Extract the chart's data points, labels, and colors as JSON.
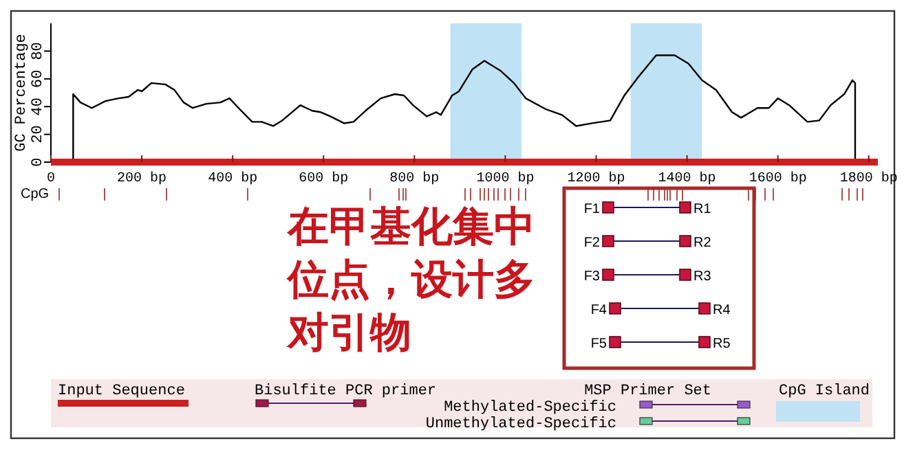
{
  "chart_data": [
    {
      "type": "line",
      "ylabel": "GC Percentage",
      "xlim": [
        0,
        1820
      ],
      "ylim": [
        0,
        100
      ],
      "xticks": [
        0,
        {
          "value": 200,
          "label": "200 bp"
        },
        {
          "value": 400,
          "label": "400 bp"
        },
        {
          "value": 600,
          "label": "600 bp"
        },
        {
          "value": 800,
          "label": "800 bp"
        },
        {
          "value": 1000,
          "label": "1000 bp"
        },
        {
          "value": 1200,
          "label": "1200 bp"
        },
        {
          "value": 1400,
          "label": "1400 bp"
        },
        {
          "value": 1600,
          "label": "1600 bp"
        },
        {
          "value": 1800,
          "label": "1800 bp"
        }
      ],
      "yticks": [
        0,
        20,
        40,
        60,
        80
      ],
      "series": [
        {
          "color": "#000000",
          "x": [
            49,
            49,
            65,
            90,
            120,
            149,
            171,
            191,
            200,
            221,
            252,
            272,
            292,
            312,
            342,
            373,
            393,
            413,
            443,
            464,
            489,
            509,
            549,
            575,
            594,
            615,
            645,
            666,
            696,
            726,
            757,
            777,
            797,
            827,
            848,
            858,
            883,
            898,
            928,
            954,
            989,
            1019,
            1045,
            1090,
            1125,
            1156,
            1191,
            1231,
            1262,
            1292,
            1332,
            1373,
            1403,
            1433,
            1464,
            1499,
            1519,
            1555,
            1580,
            1600,
            1625,
            1665,
            1691,
            1716,
            1746,
            1764,
            1770,
            1770
          ],
          "values": [
            0,
            49,
            43,
            39,
            44,
            46,
            47,
            52,
            51,
            57,
            56,
            52,
            43,
            39,
            42,
            43,
            46,
            39,
            29,
            29,
            26,
            30,
            41,
            37,
            36,
            33,
            28,
            29,
            38,
            46,
            49,
            48,
            41,
            33,
            36,
            34,
            48,
            51,
            67,
            73,
            66,
            57,
            46,
            38,
            34,
            26,
            28,
            30,
            48,
            61,
            77,
            77,
            71,
            59,
            52,
            36,
            32,
            39,
            39,
            46,
            41,
            29,
            30,
            41,
            49,
            59,
            57,
            0
          ]
        }
      ],
      "bands": [
        {
          "axis": "x",
          "from": 879,
          "to": 1036,
          "color": "#bfe3f5"
        },
        {
          "axis": "x",
          "from": 1276,
          "to": 1433,
          "color": "#bfe3f5"
        }
      ],
      "annotations": [
        "在甲基化集中位点，设计多对引物",
        "F1",
        "R1",
        "F2",
        "R2",
        "F3",
        "R3",
        "F4",
        "R4",
        "F5",
        "R5",
        "Input Sequence",
        "Bisulfite PCR primer",
        "MSP Primer Set",
        "Methylated-Specific",
        "Unmethylated-Specific",
        "CpG Island",
        "CpG"
      ]
    }
  ]
}
